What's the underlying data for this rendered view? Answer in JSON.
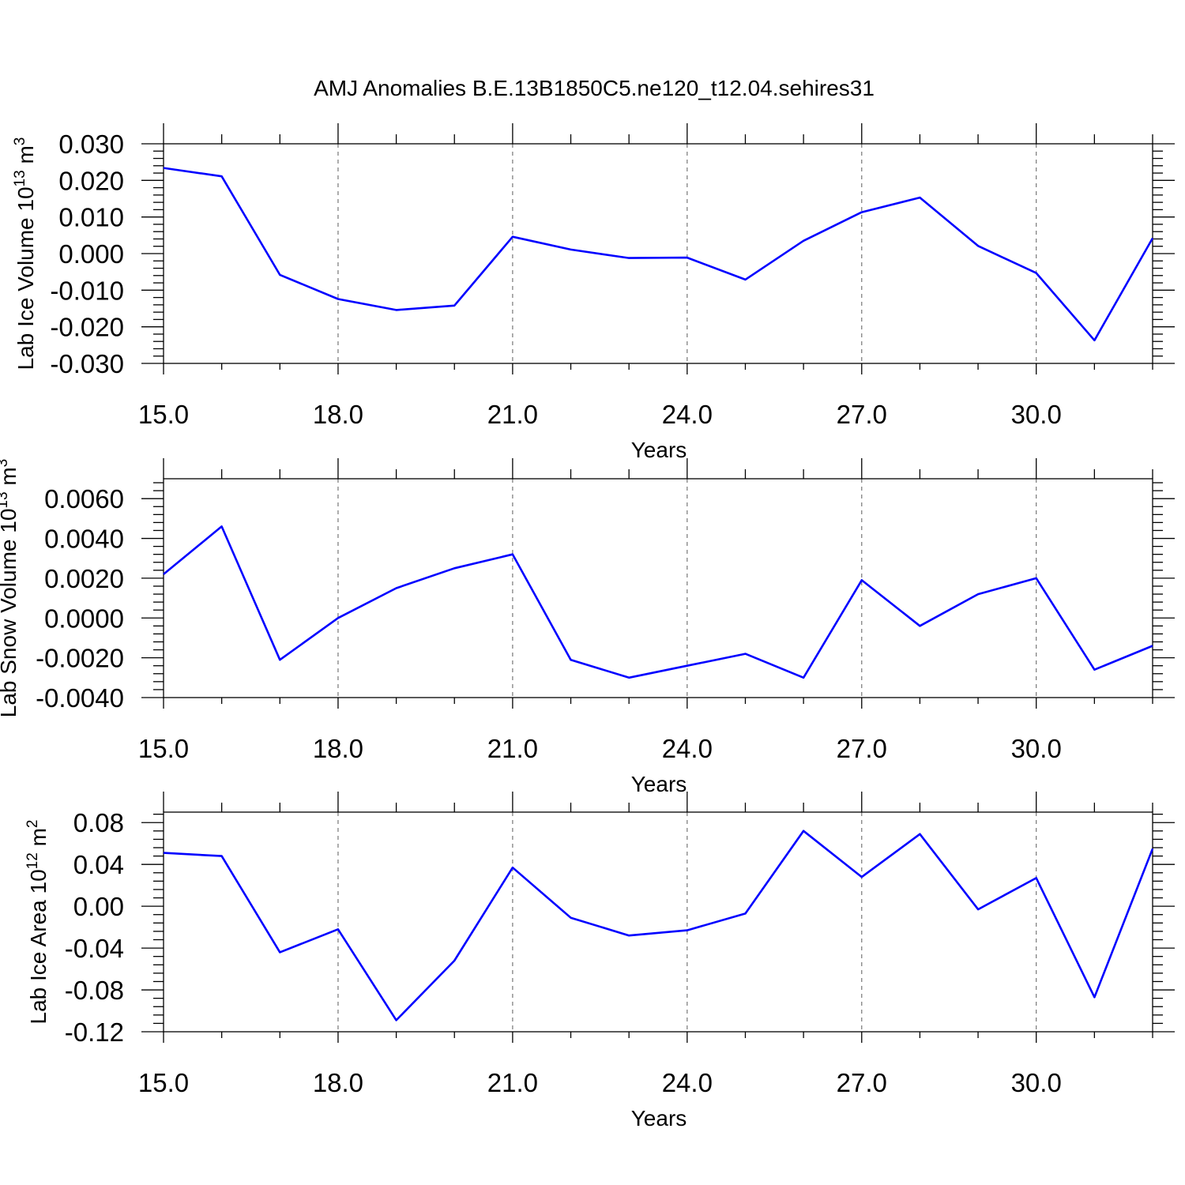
{
  "title": "AMJ Anomalies B.E.13B1850C5.ne120_t12.04.sehires31",
  "colors": {
    "series": "#0000ff",
    "grid": "#777777",
    "axis": "#000000"
  },
  "chart_data": [
    {
      "type": "line",
      "xlabel": "Years",
      "ylabel": {
        "text": "Lab Ice Volume 10",
        "sup": "13",
        "unit": " m",
        "unit_sup": "3"
      },
      "xlim": [
        15,
        32
      ],
      "ylim": [
        -0.03,
        0.03
      ],
      "x_ticks": [
        15,
        18,
        21,
        24,
        27,
        30
      ],
      "x_tick_labels": [
        "15.0",
        "18.0",
        "21.0",
        "24.0",
        "27.0",
        "30.0"
      ],
      "y_ticks": [
        -0.03,
        -0.02,
        -0.01,
        0.0,
        0.01,
        0.02,
        0.03
      ],
      "y_tick_labels": [
        "-0.030",
        "-0.020",
        "-0.010",
        "0.000",
        "0.010",
        "0.020",
        "0.030"
      ],
      "grid": "vertical dashed at major x ticks",
      "x": [
        15,
        16,
        17,
        18,
        19,
        20,
        21,
        22,
        23,
        24,
        25,
        26,
        27,
        28,
        29,
        30,
        31,
        32
      ],
      "series": [
        {
          "values": [
            0.0234,
            0.0211,
            -0.0058,
            -0.0124,
            -0.0154,
            -0.0142,
            0.0046,
            0.0011,
            -0.0012,
            -0.0011,
            -0.0071,
            0.0035,
            0.0113,
            0.0153,
            0.0021,
            -0.0053,
            -0.0237,
            0.0042
          ]
        }
      ]
    },
    {
      "type": "line",
      "xlabel": "Years",
      "ylabel": {
        "text": "Lab Snow Volume 10",
        "sup": "13",
        "unit": " m",
        "unit_sup": "3"
      },
      "xlim": [
        15,
        32
      ],
      "ylim": [
        -0.004,
        0.007
      ],
      "x_ticks": [
        15,
        18,
        21,
        24,
        27,
        30
      ],
      "x_tick_labels": [
        "15.0",
        "18.0",
        "21.0",
        "24.0",
        "27.0",
        "30.0"
      ],
      "y_ticks": [
        -0.004,
        -0.002,
        0.0,
        0.002,
        0.004,
        0.006
      ],
      "y_tick_labels": [
        "-0.0040",
        "-0.0020",
        "0.0000",
        "0.0020",
        "0.0040",
        "0.0060"
      ],
      "grid": "vertical dashed at major x ticks",
      "x": [
        15,
        16,
        17,
        18,
        19,
        20,
        21,
        22,
        23,
        24,
        25,
        26,
        27,
        28,
        29,
        30,
        31,
        32
      ],
      "series": [
        {
          "values": [
            0.0022,
            0.0046,
            -0.0021,
            0.0,
            0.0015,
            0.0025,
            0.0032,
            -0.0021,
            -0.003,
            -0.0024,
            -0.0018,
            -0.003,
            0.0019,
            -0.0004,
            0.0012,
            0.002,
            -0.0026,
            -0.0014
          ]
        }
      ]
    },
    {
      "type": "line",
      "xlabel": "Years",
      "ylabel": {
        "text": "Lab Ice Area 10",
        "sup": "12",
        "unit": " m",
        "unit_sup": "2"
      },
      "xlim": [
        15,
        32
      ],
      "ylim": [
        -0.12,
        0.09
      ],
      "x_ticks": [
        15,
        18,
        21,
        24,
        27,
        30
      ],
      "x_tick_labels": [
        "15.0",
        "18.0",
        "21.0",
        "24.0",
        "27.0",
        "30.0"
      ],
      "y_ticks": [
        -0.12,
        -0.08,
        -0.04,
        0.0,
        0.04,
        0.08
      ],
      "y_tick_labels": [
        "-0.12",
        "-0.08",
        "-0.04",
        "0.00",
        "0.04",
        "0.08"
      ],
      "grid": "vertical dashed at major x ticks",
      "x": [
        15,
        16,
        17,
        18,
        19,
        20,
        21,
        22,
        23,
        24,
        25,
        26,
        27,
        28,
        29,
        30,
        31,
        32
      ],
      "series": [
        {
          "values": [
            0.051,
            0.048,
            -0.044,
            -0.022,
            -0.109,
            -0.052,
            0.037,
            -0.011,
            -0.028,
            -0.023,
            -0.007,
            0.072,
            0.028,
            0.069,
            -0.003,
            0.027,
            -0.087,
            0.055
          ]
        }
      ]
    }
  ]
}
